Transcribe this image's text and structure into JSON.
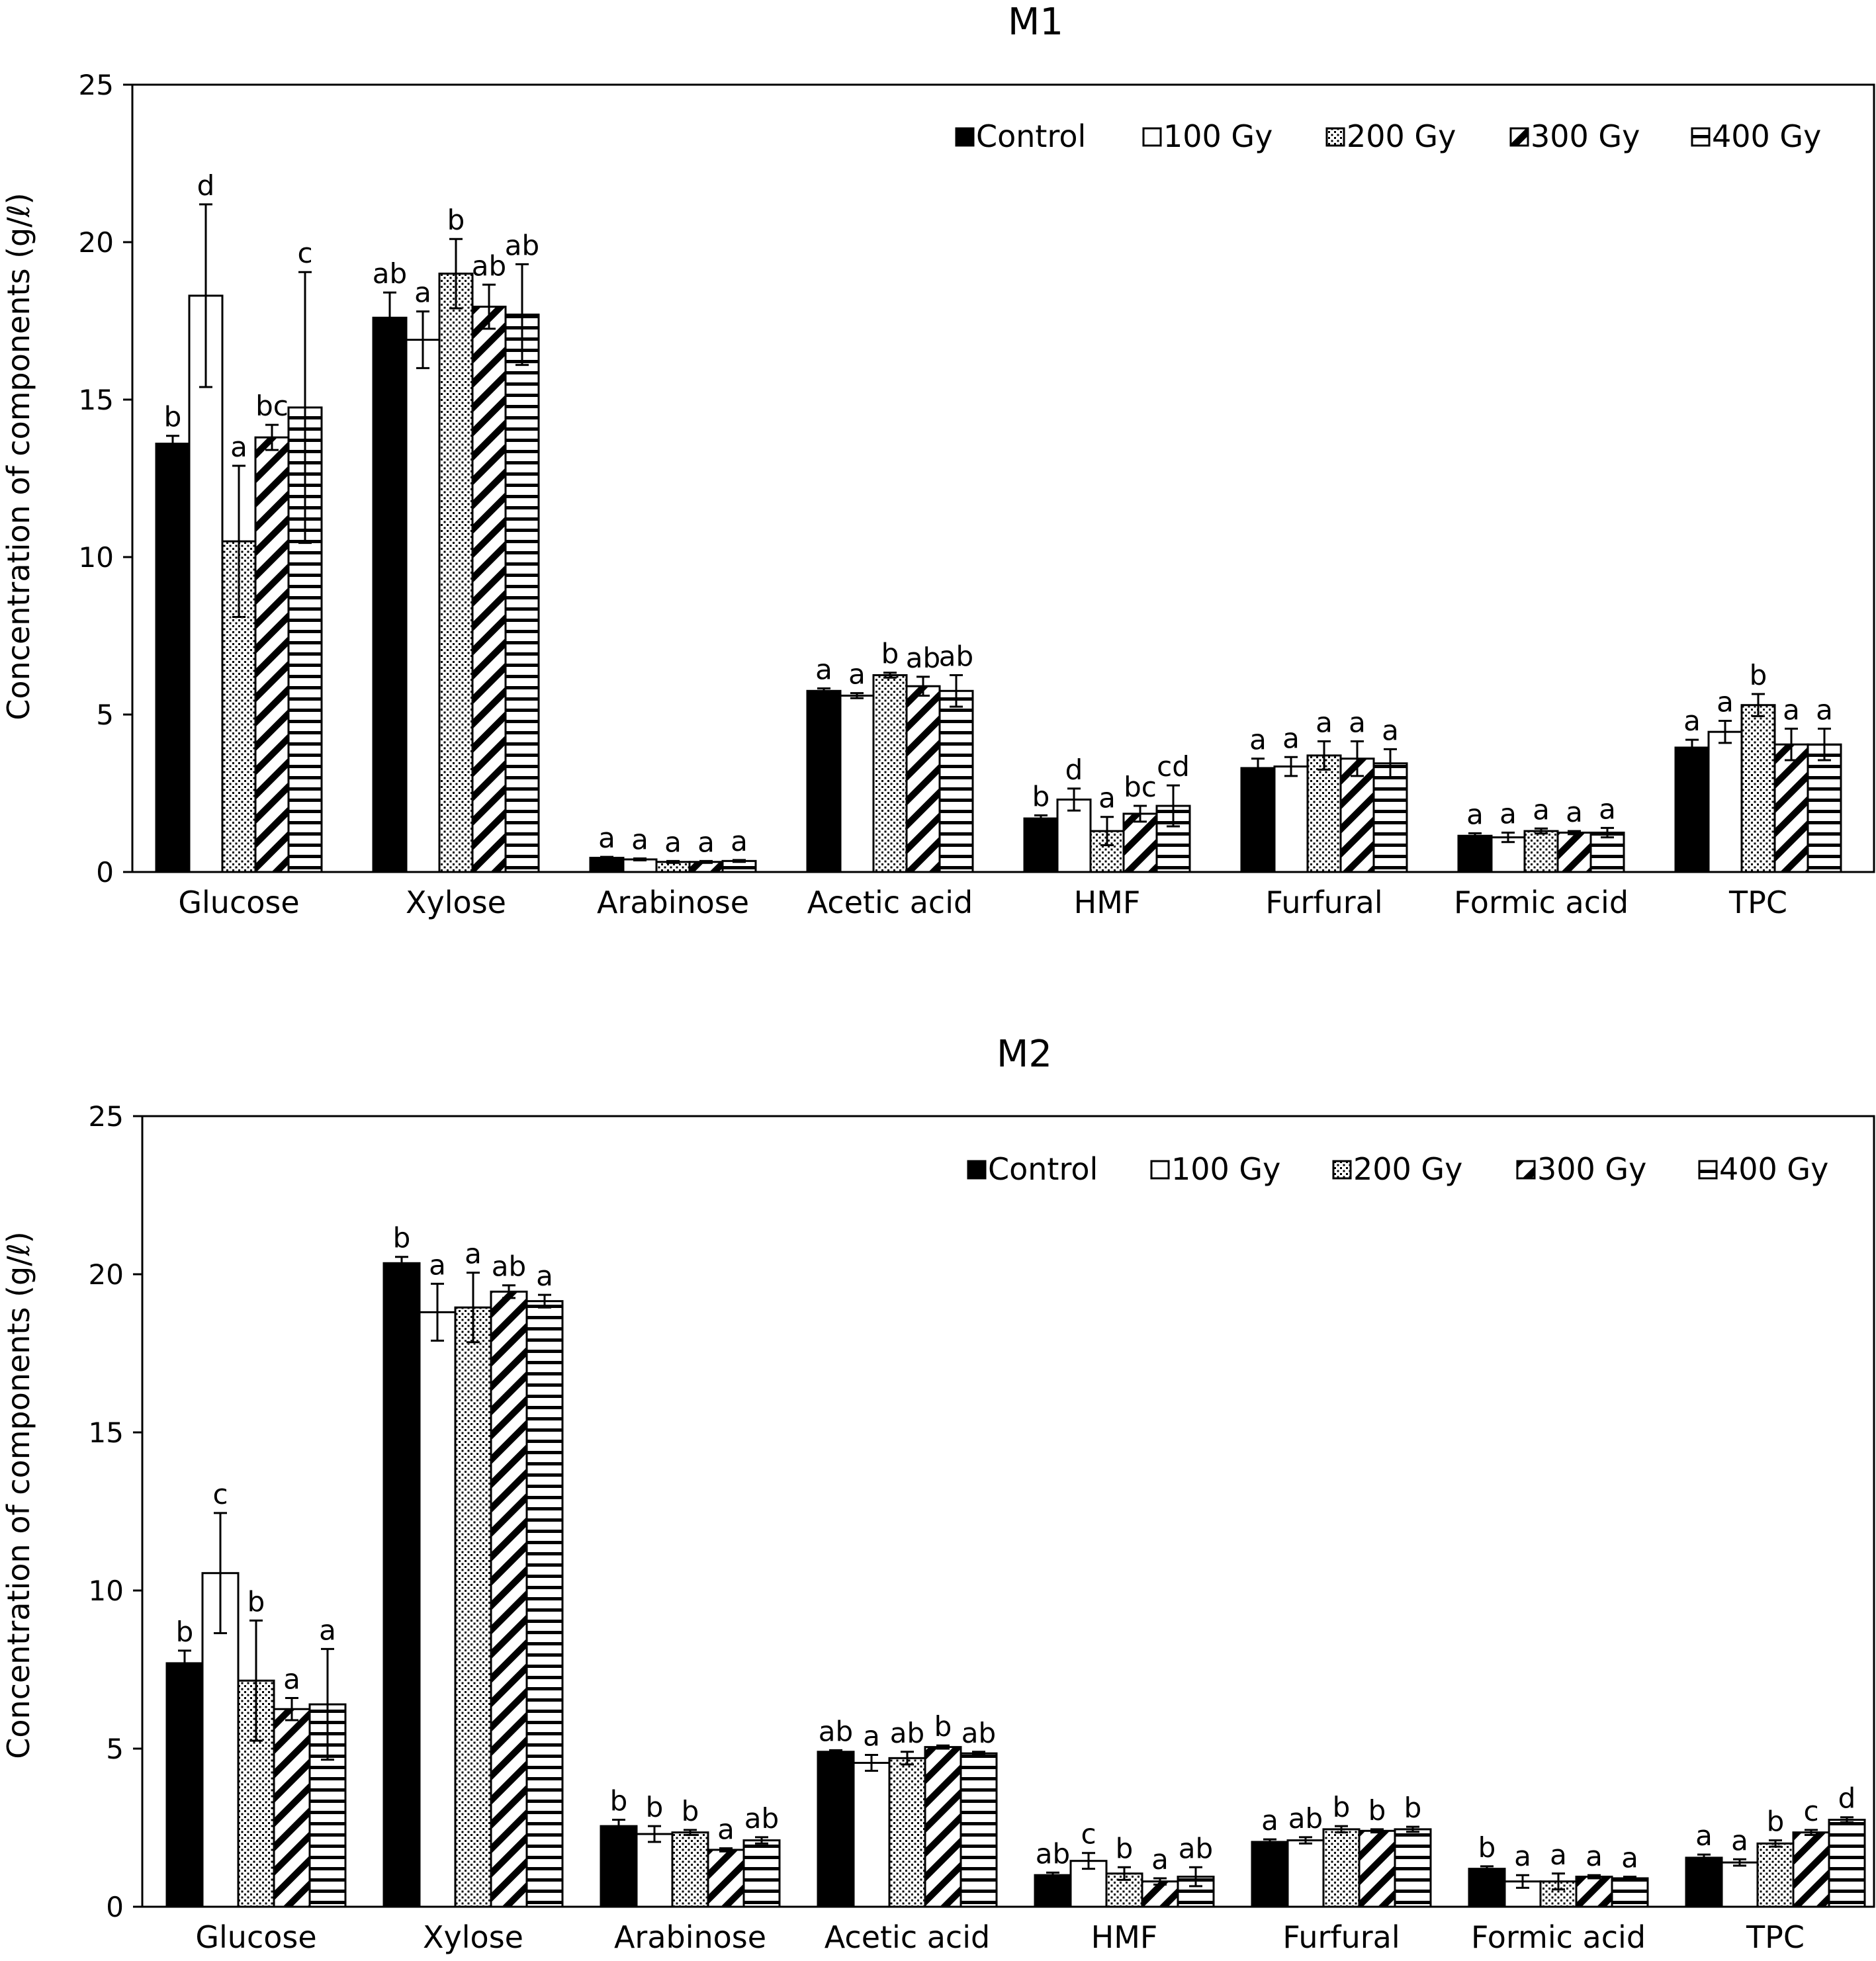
{
  "chart_data": [
    {
      "type": "bar",
      "title": "M1",
      "xlabel": "",
      "ylabel": "Concentration of components (g/ℓ)",
      "ylim": [
        0,
        25
      ],
      "yticks": [
        0,
        5,
        10,
        15,
        20,
        25
      ],
      "categories": [
        "Glucose",
        "Xylose",
        "Arabinose",
        "Acetic acid",
        "HMF",
        "Furfural",
        "Formic acid",
        "TPC"
      ],
      "legend": [
        "Control",
        "100 Gy",
        "200 Gy",
        "300 Gy",
        "400 Gy"
      ],
      "series": [
        {
          "name": "Control",
          "pattern": "solid",
          "values": [
            13.6,
            17.6,
            0.45,
            5.75,
            1.7,
            3.3,
            1.15,
            3.95
          ],
          "errors": [
            0.25,
            0.8,
            0.03,
            0.08,
            0.1,
            0.3,
            0.08,
            0.25
          ]
        },
        {
          "name": "100 Gy",
          "pattern": "white",
          "values": [
            18.3,
            16.9,
            0.4,
            5.6,
            2.3,
            3.35,
            1.1,
            4.45
          ],
          "errors": [
            2.9,
            0.9,
            0.03,
            0.08,
            0.35,
            0.3,
            0.15,
            0.35
          ]
        },
        {
          "name": "200 Gy",
          "pattern": "dots",
          "values": [
            10.5,
            19.0,
            0.32,
            6.25,
            1.3,
            3.7,
            1.3,
            5.3
          ],
          "errors": [
            2.4,
            1.1,
            0.03,
            0.08,
            0.45,
            0.45,
            0.08,
            0.35
          ]
        },
        {
          "name": "300 Gy",
          "pattern": "diagonal",
          "values": [
            13.8,
            17.95,
            0.32,
            5.9,
            1.85,
            3.6,
            1.25,
            4.05
          ],
          "errors": [
            0.4,
            0.7,
            0.03,
            0.3,
            0.25,
            0.55,
            0.05,
            0.5
          ]
        },
        {
          "name": "400 Gy",
          "pattern": "horizontal",
          "values": [
            14.75,
            17.7,
            0.35,
            5.75,
            2.1,
            3.45,
            1.25,
            4.05
          ],
          "errors": [
            4.3,
            1.6,
            0.03,
            0.5,
            0.65,
            0.45,
            0.15,
            0.5
          ]
        }
      ],
      "significance": [
        [
          "b",
          "ab",
          "a",
          "a",
          "b",
          "a",
          "a",
          "a"
        ],
        [
          "d",
          "a",
          "a",
          "a",
          "d",
          "a",
          "a",
          "a"
        ],
        [
          "a",
          "b",
          "a",
          "b",
          "a",
          "a",
          "a",
          "b"
        ],
        [
          "bc",
          "ab",
          "a",
          "ab",
          "bc",
          "a",
          "a",
          "a"
        ],
        [
          "c",
          "ab",
          "a",
          "ab",
          "cd",
          "a",
          "a",
          "a"
        ]
      ]
    },
    {
      "type": "bar",
      "title": "M2",
      "xlabel": "",
      "ylabel": "Concentration of components (g/ℓ)",
      "ylim": [
        0,
        25
      ],
      "yticks": [
        0,
        5,
        10,
        15,
        20,
        25
      ],
      "categories": [
        "Glucose",
        "Xylose",
        "Arabinose",
        "Acetic acid",
        "HMF",
        "Furfural",
        "Formic acid",
        "TPC"
      ],
      "legend": [
        "Control",
        "100 Gy",
        "200 Gy",
        "300 Gy",
        "400 Gy"
      ],
      "series": [
        {
          "name": "Control",
          "pattern": "solid",
          "values": [
            7.7,
            20.35,
            2.55,
            4.9,
            1.0,
            2.05,
            1.2,
            1.55
          ],
          "errors": [
            0.4,
            0.2,
            0.2,
            0.05,
            0.08,
            0.08,
            0.08,
            0.1
          ]
        },
        {
          "name": "100 Gy",
          "pattern": "white",
          "values": [
            10.55,
            18.8,
            2.3,
            4.55,
            1.45,
            2.1,
            0.8,
            1.4
          ],
          "errors": [
            1.9,
            0.9,
            0.25,
            0.25,
            0.25,
            0.1,
            0.2,
            0.1
          ]
        },
        {
          "name": "200 Gy",
          "pattern": "dots",
          "values": [
            7.15,
            18.95,
            2.35,
            4.7,
            1.05,
            2.45,
            0.8,
            2.0
          ],
          "errors": [
            1.9,
            1.1,
            0.08,
            0.2,
            0.2,
            0.1,
            0.25,
            0.1
          ]
        },
        {
          "name": "300 Gy",
          "pattern": "diagonal",
          "values": [
            6.25,
            19.45,
            1.8,
            5.05,
            0.8,
            2.4,
            0.95,
            2.35
          ],
          "errors": [
            0.35,
            0.2,
            0.05,
            0.05,
            0.1,
            0.05,
            0.05,
            0.08
          ]
        },
        {
          "name": "400 Gy",
          "pattern": "horizontal",
          "values": [
            6.4,
            19.15,
            2.1,
            4.85,
            0.95,
            2.45,
            0.9,
            2.75
          ],
          "errors": [
            1.75,
            0.2,
            0.1,
            0.05,
            0.3,
            0.08,
            0.05,
            0.08
          ]
        }
      ],
      "significance": [
        [
          "b",
          "b",
          "b",
          "ab",
          "ab",
          "a",
          "b",
          "a"
        ],
        [
          "c",
          "a",
          "b",
          "a",
          "c",
          "ab",
          "a",
          "a"
        ],
        [
          "b",
          "a",
          "b",
          "ab",
          "b",
          "b",
          "a",
          "b"
        ],
        [
          "a",
          "ab",
          "a",
          "b",
          "a",
          "b",
          "a",
          "c"
        ],
        [
          "a",
          "a",
          "ab",
          "ab",
          "ab",
          "b",
          "a",
          "d"
        ]
      ]
    }
  ]
}
